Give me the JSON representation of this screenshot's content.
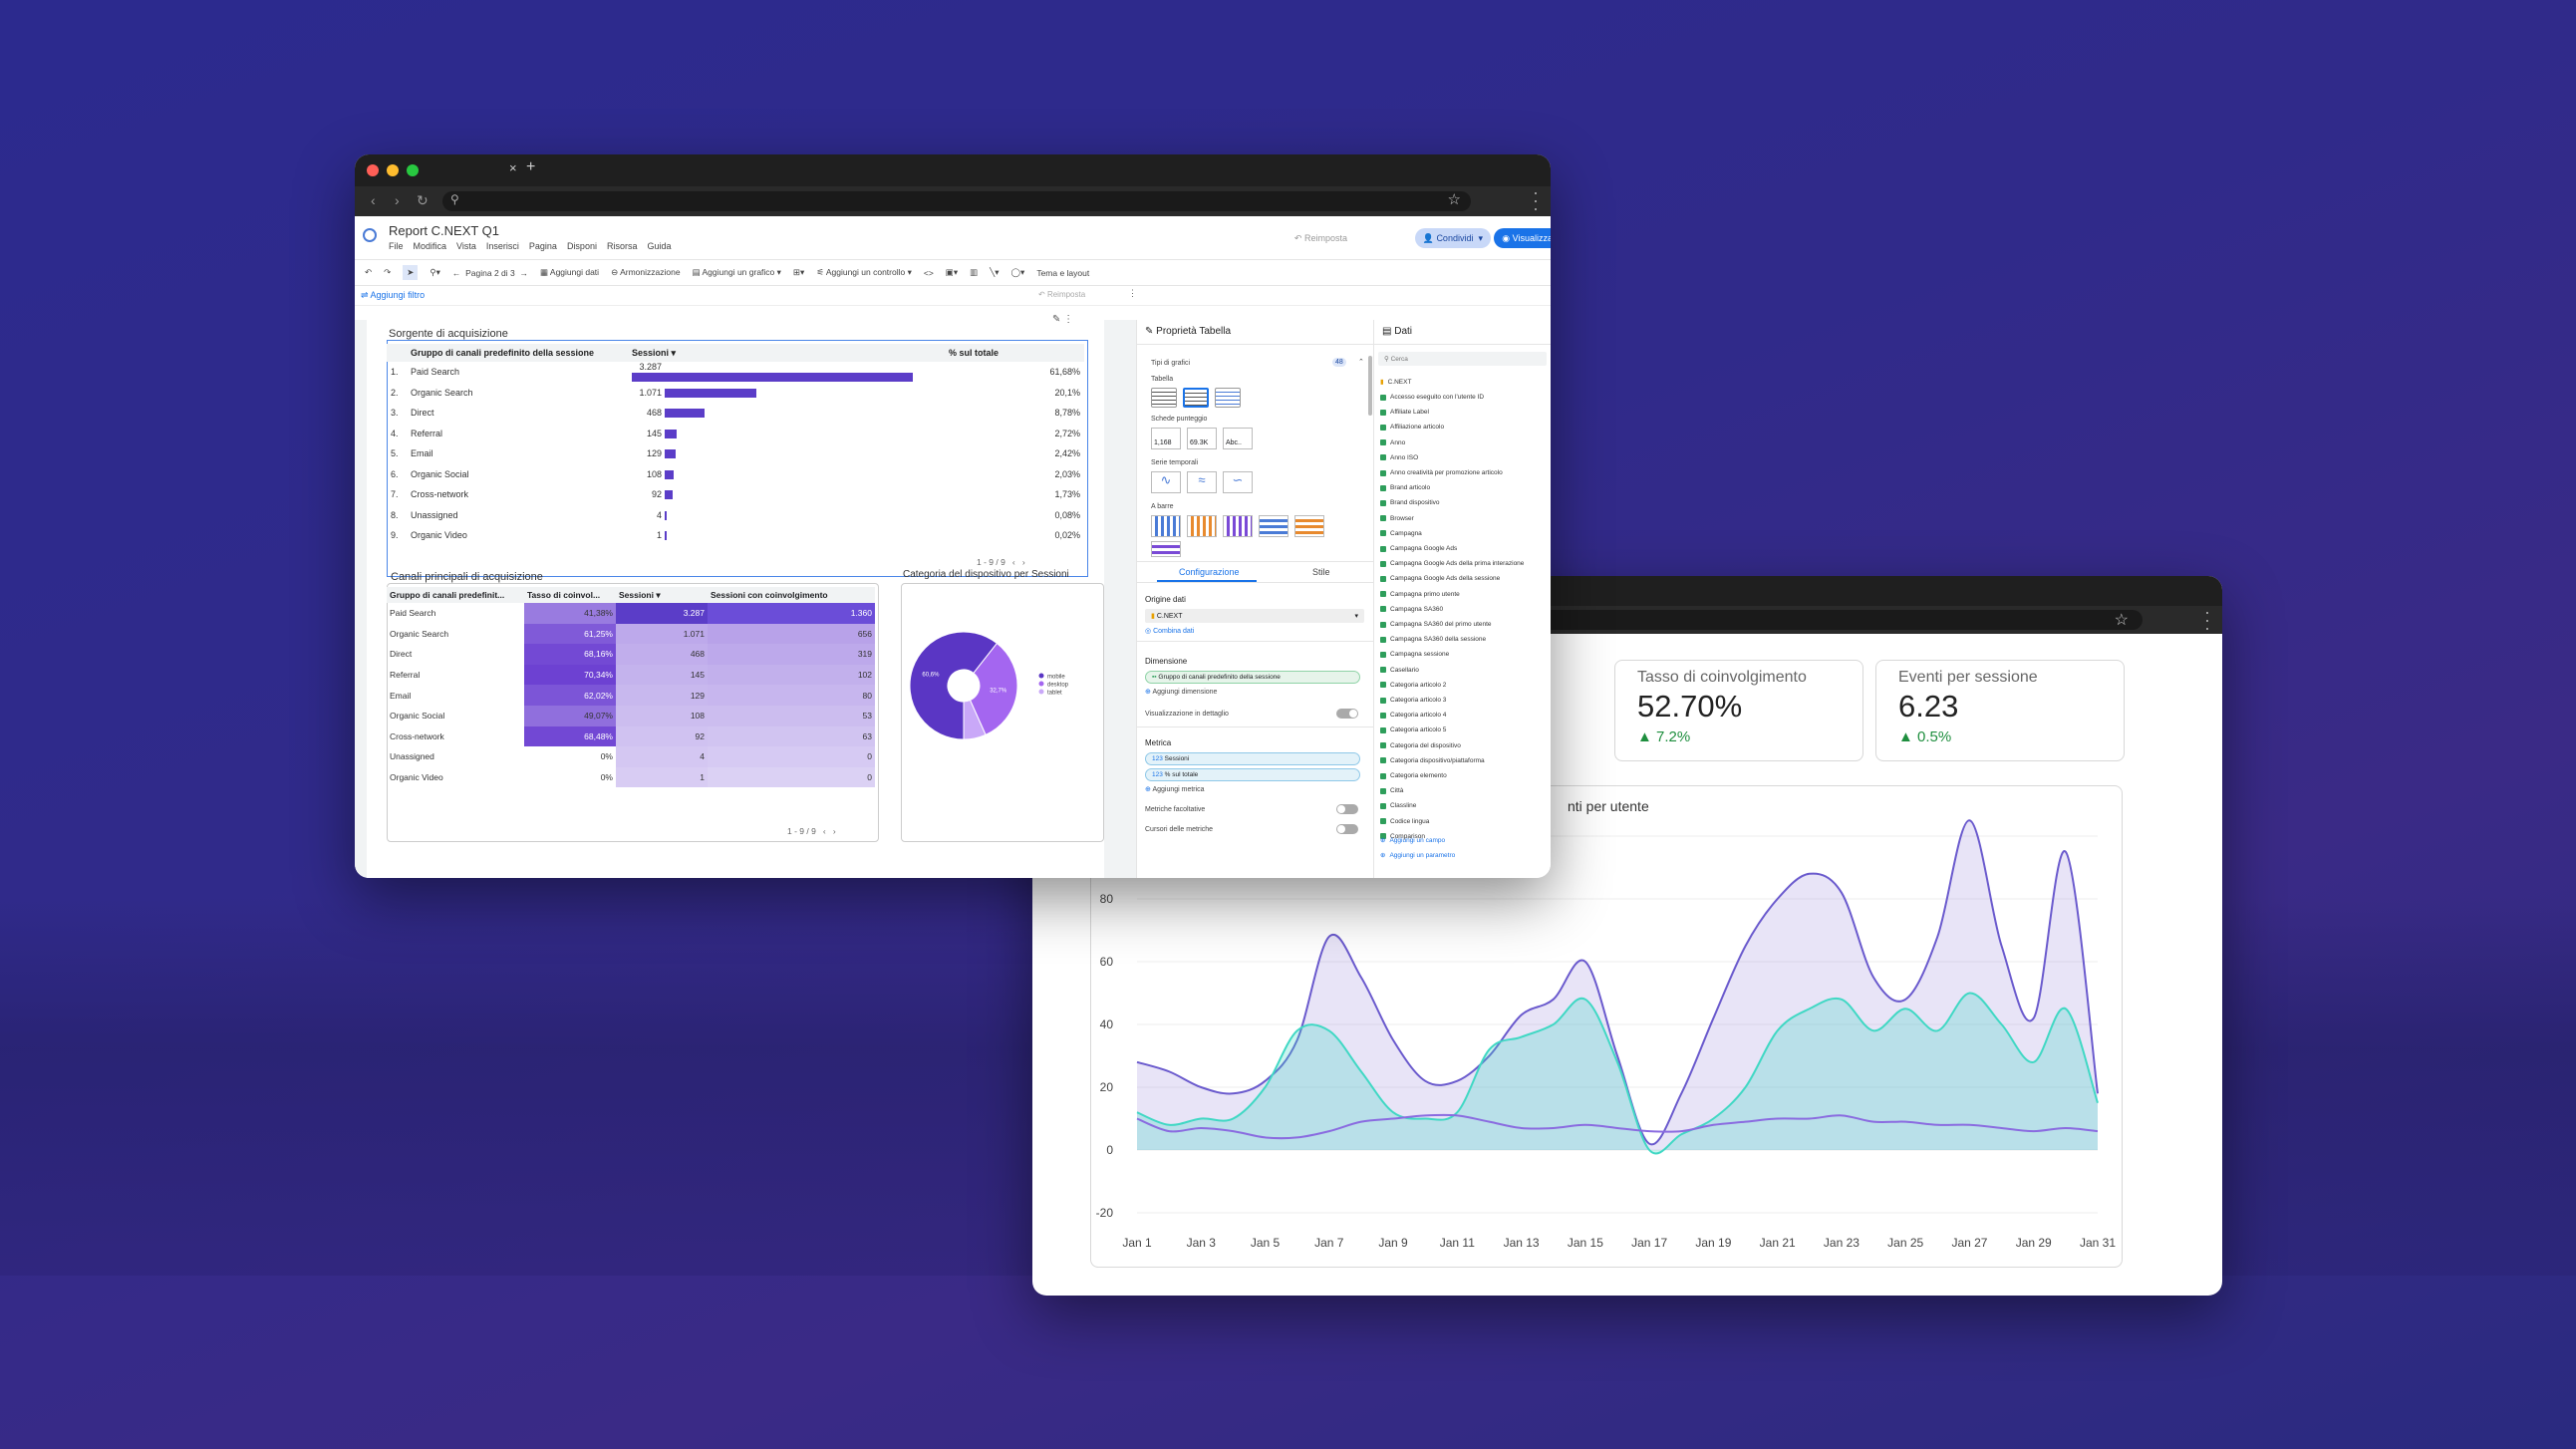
{
  "w1": {
    "report_title": "Report C.NEXT Q1",
    "menus": [
      "File",
      "Modifica",
      "Vista",
      "Inserisci",
      "Pagina",
      "Disponi",
      "Risorsa",
      "Guida"
    ],
    "reimposta": "Reimposta",
    "condividi": "Condividi",
    "visualizza": "Visualizza",
    "toolbar": {
      "page": "Pagina 2 di 3",
      "add_data": "Aggiungi dati",
      "harmon": "Armonizzazione",
      "add_chart": "Aggiungi un grafico",
      "add_control": "Aggiungi un controllo",
      "theme": "Tema e layout"
    },
    "add_filter": "Aggiungi filtro",
    "reimposta2": "Reimposta",
    "table1": {
      "title": "Sorgente di acquisizione",
      "headers": [
        "Gruppo di canali predefinito della sessione",
        "Sessioni",
        "% sul totale"
      ],
      "rows": [
        {
          "n": "1.",
          "name": "Paid Search",
          "val": "3.287",
          "pct": "61,68%",
          "frac": 1
        },
        {
          "n": "2.",
          "name": "Organic Search",
          "val": "1.071",
          "pct": "20,1%",
          "frac": 0.326
        },
        {
          "n": "3.",
          "name": "Direct",
          "val": "468",
          "pct": "8,78%",
          "frac": 0.142
        },
        {
          "n": "4.",
          "name": "Referral",
          "val": "145",
          "pct": "2,72%",
          "frac": 0.044
        },
        {
          "n": "5.",
          "name": "Email",
          "val": "129",
          "pct": "2,42%",
          "frac": 0.039
        },
        {
          "n": "6.",
          "name": "Organic Social",
          "val": "108",
          "pct": "2,03%",
          "frac": 0.033
        },
        {
          "n": "7.",
          "name": "Cross-network",
          "val": "92",
          "pct": "1,73%",
          "frac": 0.028
        },
        {
          "n": "8.",
          "name": "Unassigned",
          "val": "4",
          "pct": "0,08%",
          "frac": 0.001
        },
        {
          "n": "9.",
          "name": "Organic Video",
          "val": "1",
          "pct": "0,02%",
          "frac": 0.0003
        }
      ],
      "pager": "1 - 9 / 9"
    },
    "table2": {
      "title": "Canali principali di acquisizione",
      "headers": [
        "Gruppo di canali predefinit...",
        "Tasso di coinvol...",
        "Sessioni",
        "Sessioni con coinvolgimento"
      ],
      "rows": [
        {
          "name": "Paid Search",
          "rate": "41,38%",
          "s": "3.287",
          "e": "1.360",
          "h": 0.55
        },
        {
          "name": "Organic Search",
          "rate": "61,25%",
          "s": "1.071",
          "e": "656",
          "h": 0.75
        },
        {
          "name": "Direct",
          "rate": "68,16%",
          "s": "468",
          "e": "319",
          "h": 0.85
        },
        {
          "name": "Referral",
          "rate": "70,34%",
          "s": "145",
          "e": "102",
          "h": 0.9
        },
        {
          "name": "Email",
          "rate": "62,02%",
          "s": "129",
          "e": "80",
          "h": 0.78
        },
        {
          "name": "Organic Social",
          "rate": "49,07%",
          "s": "108",
          "e": "53",
          "h": 0.62
        },
        {
          "name": "Cross-network",
          "rate": "68,48%",
          "s": "92",
          "e": "63",
          "h": 0.86
        },
        {
          "name": "Unassigned",
          "rate": "0%",
          "s": "4",
          "e": "0",
          "h": 0
        },
        {
          "name": "Organic Video",
          "rate": "0%",
          "s": "1",
          "e": "0",
          "h": 0
        }
      ],
      "pager": "1 - 9 / 9"
    },
    "pie": {
      "title": "Categoria del dispositivo per Sessioni",
      "slices": [
        {
          "label": "mobile",
          "pct": "60,6%",
          "value": 60.6,
          "color": "#5a36c4"
        },
        {
          "label": "desktop",
          "pct": "32,7%",
          "value": 32.7,
          "color": "#a466f0"
        },
        {
          "label": "tablet",
          "pct": "",
          "value": 6.7,
          "color": "#c9a8f8"
        }
      ]
    },
    "props": {
      "title": "Proprietà Tabella",
      "chart_types": "Tipi di grafici",
      "tabella": "Tabella",
      "scheda": "Schede punteggio",
      "serie": "Serie temporali",
      "barre": "A barre",
      "tab_config": "Configurazione",
      "tab_style": "Stile",
      "origine": "Origine dati",
      "source": "C.NEXT",
      "combina": "Combina dati",
      "dimensione": "Dimensione",
      "dim_value": "Gruppo di canali predefinito della sessione",
      "add_dim": "Aggiungi dimensione",
      "drill": "Visualizzazione in dettaglio",
      "metrica": "Metrica",
      "metric1": "Sessioni",
      "metric2": "% sul totale",
      "add_metric": "Aggiungi metrica",
      "opt_metrics": "Metriche facoltative",
      "metric_sliders": "Cursori delle metriche",
      "card1": "1,168",
      "card2": "69.3K",
      "card3": "Abc..",
      "count": "48"
    },
    "data": {
      "title": "Dati",
      "search": "Cerca",
      "source": "C.NEXT",
      "fields": [
        "Accesso eseguito con l'utente ID",
        "Affiliate Label",
        "Affiliazione articolo",
        "Anno",
        "Anno ISO",
        "Anno creatività per promozione articolo",
        "Brand articolo",
        "Brand dispositivo",
        "Browser",
        "Campagna",
        "Campagna Google Ads",
        "Campagna Google Ads della prima interazione",
        "Campagna Google Ads della sessione",
        "Campagna primo utente",
        "Campagna SA360",
        "Campagna SA360 del primo utente",
        "Campagna SA360 della sessione",
        "Campagna sessione",
        "Casellario",
        "Categoria articolo 2",
        "Categoria articolo 3",
        "Categoria articolo 4",
        "Categoria articolo 5",
        "Categoria del dispositivo",
        "Categoria dispositivo/piattaforma",
        "Categoria elemento",
        "Città",
        "Classline",
        "Codice lingua",
        "Comparison"
      ],
      "add_field": "Aggiungi un campo",
      "add_param": "Aggiungi un parametro"
    }
  },
  "w2": {
    "kpis": [
      {
        "label": "Tasso di coinvolgimento",
        "value": "52.70%",
        "delta": "7.2%"
      },
      {
        "label": "Eventi per sessione",
        "value": "6.23",
        "delta": "0.5%"
      }
    ],
    "chart_title": "nti per utente",
    "chart_data": {
      "type": "area",
      "title": "nti per utente",
      "x": [
        "Jan 1",
        "Jan 2",
        "Jan 3",
        "Jan 4",
        "Jan 5",
        "Jan 6",
        "Jan 7",
        "Jan 8",
        "Jan 9",
        "Jan 10",
        "Jan 11",
        "Jan 12",
        "Jan 13",
        "Jan 14",
        "Jan 15",
        "Jan 16",
        "Jan 17",
        "Jan 18",
        "Jan 19",
        "Jan 20",
        "Jan 21",
        "Jan 22",
        "Jan 23",
        "Jan 24",
        "Jan 25",
        "Jan 26",
        "Jan 27",
        "Jan 28",
        "Jan 29",
        "Jan 30",
        "Jan 31"
      ],
      "xticks": [
        "Jan 1",
        "Jan 3",
        "Jan 5",
        "Jan 7",
        "Jan 9",
        "Jan 11",
        "Jan 13",
        "Jan 15",
        "Jan 17",
        "Jan 19",
        "Jan 21",
        "Jan 23",
        "Jan 25",
        "Jan 27",
        "Jan 29",
        "Jan 31"
      ],
      "yticks": [
        "-20",
        "0",
        "20",
        "40",
        "60",
        "80",
        "100"
      ],
      "ylim": [
        -20,
        100
      ],
      "series": [
        {
          "color": "#6a5acd",
          "values": [
            28,
            25,
            20,
            18,
            22,
            35,
            68,
            55,
            35,
            22,
            22,
            30,
            43,
            48,
            60,
            30,
            2,
            18,
            42,
            65,
            80,
            88,
            82,
            55,
            48,
            68,
            105,
            65,
            42,
            95,
            18
          ]
        },
        {
          "color": "#40d8c4",
          "values": [
            12,
            8,
            10,
            10,
            20,
            38,
            38,
            25,
            12,
            10,
            12,
            32,
            36,
            40,
            48,
            28,
            0,
            5,
            10,
            20,
            38,
            45,
            48,
            38,
            45,
            38,
            50,
            40,
            28,
            45,
            15
          ]
        },
        {
          "color": "#8a6be0",
          "values": [
            10,
            6,
            7,
            6,
            4,
            4,
            6,
            9,
            10,
            11,
            11,
            9,
            7,
            7,
            8,
            7,
            6,
            6,
            8,
            9,
            10,
            10,
            11,
            9,
            9,
            8,
            8,
            7,
            6,
            7,
            6
          ]
        }
      ]
    }
  }
}
